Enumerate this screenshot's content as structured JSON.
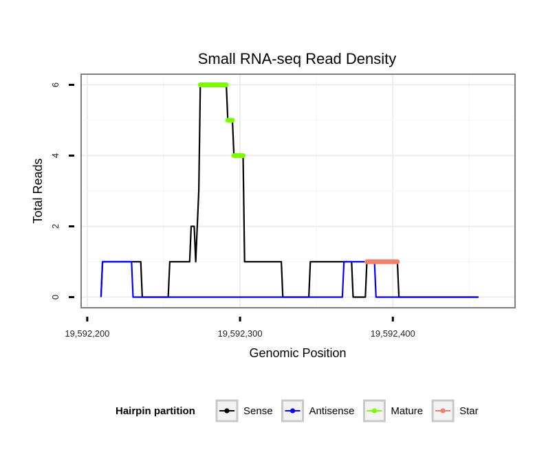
{
  "chart_data": {
    "type": "line",
    "title": "Small RNA-seq Read Density",
    "xlabel": "Genomic Position",
    "ylabel": "Total Reads",
    "xlim": [
      19592196,
      19592480
    ],
    "ylim": [
      -0.3,
      6.3
    ],
    "xticks": [
      19592200,
      19592300,
      19592400
    ],
    "xtick_labels": [
      "19,592,200",
      "19,592,300",
      "19,592,400"
    ],
    "yticks": [
      0,
      2,
      4,
      6
    ],
    "ytick_labels": [
      "0",
      "2",
      "4",
      "6"
    ],
    "grid": true,
    "legend_title": "Hairpin partition",
    "legend_position": "bottom",
    "series": [
      {
        "name": "Sense",
        "color": "#000000",
        "points": [
          [
            19592209,
            0
          ],
          [
            19592210,
            1
          ],
          [
            19592235,
            1
          ],
          [
            19592236,
            0
          ],
          [
            19592253,
            0
          ],
          [
            19592254,
            1
          ],
          [
            19592267,
            1
          ],
          [
            19592268,
            2
          ],
          [
            19592270,
            2
          ],
          [
            19592271,
            1
          ],
          [
            19592273,
            3
          ],
          [
            19592274,
            6
          ],
          [
            19592291,
            6
          ],
          [
            19592292,
            5
          ],
          [
            19592295,
            5
          ],
          [
            19592296,
            4
          ],
          [
            19592302,
            4
          ],
          [
            19592303,
            1
          ],
          [
            19592327,
            1
          ],
          [
            19592328,
            0
          ],
          [
            19592345,
            0
          ],
          [
            19592346,
            1
          ],
          [
            19592373,
            1
          ],
          [
            19592374,
            0
          ],
          [
            19592382,
            0
          ],
          [
            19592383,
            1
          ],
          [
            19592403,
            1
          ],
          [
            19592404,
            0
          ],
          [
            19592456,
            0
          ]
        ]
      },
      {
        "name": "Antisense",
        "color": "#0000ff",
        "points": [
          [
            19592209,
            0
          ],
          [
            19592210,
            1
          ],
          [
            19592229,
            1
          ],
          [
            19592230,
            0
          ],
          [
            19592367,
            0
          ],
          [
            19592368,
            1
          ],
          [
            19592388,
            1
          ],
          [
            19592389,
            0
          ],
          [
            19592456,
            0
          ]
        ]
      },
      {
        "name": "Mature",
        "color": "#7cfc00",
        "segments": [
          {
            "x": [
              19592274,
              19592291
            ],
            "y": 6
          },
          {
            "x": [
              19592292,
              19592295
            ],
            "y": 5
          },
          {
            "x": [
              19592296,
              19592302
            ],
            "y": 4
          }
        ]
      },
      {
        "name": "Star",
        "color": "#f08070",
        "segments": [
          {
            "x": [
              19592383,
              19592403
            ],
            "y": 1
          }
        ]
      }
    ]
  }
}
